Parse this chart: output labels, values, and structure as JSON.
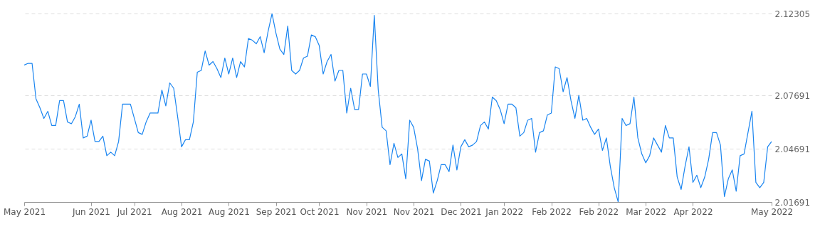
{
  "chart_data": {
    "type": "line",
    "categories": [
      "May 2021",
      null,
      null,
      null,
      null,
      null,
      null,
      null,
      null,
      null,
      null,
      null,
      null,
      null,
      null,
      null,
      null,
      "Jun 2021",
      null,
      null,
      null,
      null,
      null,
      null,
      null,
      null,
      null,
      null,
      "Jul 2021",
      null,
      null,
      null,
      null,
      null,
      null,
      null,
      null,
      null,
      null,
      null,
      "Aug 2021",
      null,
      null,
      null,
      null,
      null,
      null,
      null,
      null,
      null,
      null,
      null,
      "Aug 2021",
      null,
      null,
      null,
      null,
      null,
      null,
      null,
      null,
      null,
      null,
      null,
      "Sep 2021",
      null,
      null,
      null,
      null,
      null,
      null,
      null,
      null,
      null,
      null,
      "Oct 2021",
      null,
      null,
      null,
      null,
      null,
      null,
      null,
      null,
      null,
      null,
      null,
      "Nov 2021",
      null,
      null,
      null,
      null,
      null,
      null,
      null,
      null,
      null,
      null,
      null,
      "Nov 2021",
      null,
      null,
      null,
      null,
      null,
      null,
      null,
      null,
      null,
      null,
      null,
      "Dec 2021",
      null,
      null,
      null,
      null,
      null,
      null,
      null,
      null,
      null,
      null,
      "Jan 2022",
      null,
      null,
      null,
      null,
      null,
      null,
      null,
      null,
      null,
      null,
      null,
      "Feb 2022",
      null,
      null,
      null,
      null,
      null,
      null,
      null,
      null,
      null,
      null,
      null,
      "Feb 2022",
      null,
      null,
      null,
      null,
      null,
      null,
      null,
      null,
      null,
      null,
      null,
      "Mar 2022",
      null,
      null,
      null,
      null,
      null,
      null,
      null,
      null,
      null,
      null,
      null,
      "Apr 2022",
      null,
      null,
      null,
      null,
      null,
      null,
      null,
      null,
      null,
      null,
      null,
      null,
      null,
      null,
      null,
      null,
      null,
      null,
      null,
      "May 2022"
    ],
    "series": [
      {
        "color": "#1a85f0",
        "values": [
          2.094,
          2.095,
          2.095,
          2.075,
          2.07,
          2.064,
          2.068,
          2.06,
          2.06,
          2.074,
          2.074,
          2.062,
          2.061,
          2.065,
          2.072,
          2.053,
          2.054,
          2.063,
          2.051,
          2.051,
          2.054,
          2.043,
          2.045,
          2.043,
          2.051,
          2.072,
          2.072,
          2.072,
          2.064,
          2.056,
          2.055,
          2.062,
          2.067,
          2.067,
          2.067,
          2.08,
          2.071,
          2.084,
          2.081,
          2.065,
          2.048,
          2.052,
          2.052,
          2.062,
          2.09,
          2.091,
          2.102,
          2.094,
          2.096,
          2.092,
          2.087,
          2.098,
          2.089,
          2.098,
          2.087,
          2.096,
          2.093,
          2.109,
          2.108,
          2.106,
          2.11,
          2.101,
          2.113,
          2.123,
          2.112,
          2.103,
          2.1,
          2.116,
          2.091,
          2.089,
          2.091,
          2.098,
          2.099,
          2.111,
          2.11,
          2.105,
          2.089,
          2.096,
          2.1,
          2.085,
          2.091,
          2.091,
          2.067,
          2.081,
          2.069,
          2.069,
          2.089,
          2.089,
          2.082,
          2.122,
          2.08,
          2.059,
          2.057,
          2.038,
          2.05,
          2.042,
          2.044,
          2.03,
          2.063,
          2.059,
          2.047,
          2.029,
          2.041,
          2.04,
          2.022,
          2.029,
          2.038,
          2.038,
          2.034,
          2.049,
          2.035,
          2.048,
          2.052,
          2.048,
          2.049,
          2.051,
          2.06,
          2.062,
          2.058,
          2.076,
          2.074,
          2.069,
          2.061,
          2.072,
          2.072,
          2.07,
          2.054,
          2.056,
          2.063,
          2.064,
          2.045,
          2.056,
          2.057,
          2.066,
          2.067,
          2.093,
          2.092,
          2.079,
          2.087,
          2.074,
          2.064,
          2.077,
          2.063,
          2.064,
          2.059,
          2.055,
          2.058,
          2.046,
          2.053,
          2.037,
          2.025,
          2.017,
          2.064,
          2.06,
          2.061,
          2.076,
          2.053,
          2.044,
          2.039,
          2.043,
          2.053,
          2.049,
          2.045,
          2.06,
          2.053,
          2.053,
          2.031,
          2.024,
          2.037,
          2.048,
          2.028,
          2.032,
          2.025,
          2.031,
          2.041,
          2.056,
          2.056,
          2.049,
          2.02,
          2.03,
          2.035,
          2.023,
          2.043,
          2.044,
          2.056,
          2.068,
          2.028,
          2.025,
          2.028,
          2.048,
          2.051
        ]
      }
    ],
    "ylim": [
      2.01691,
      2.12305
    ],
    "yticks": [
      2.01691,
      2.04691,
      2.07691,
      2.12305
    ],
    "grid": "y"
  }
}
